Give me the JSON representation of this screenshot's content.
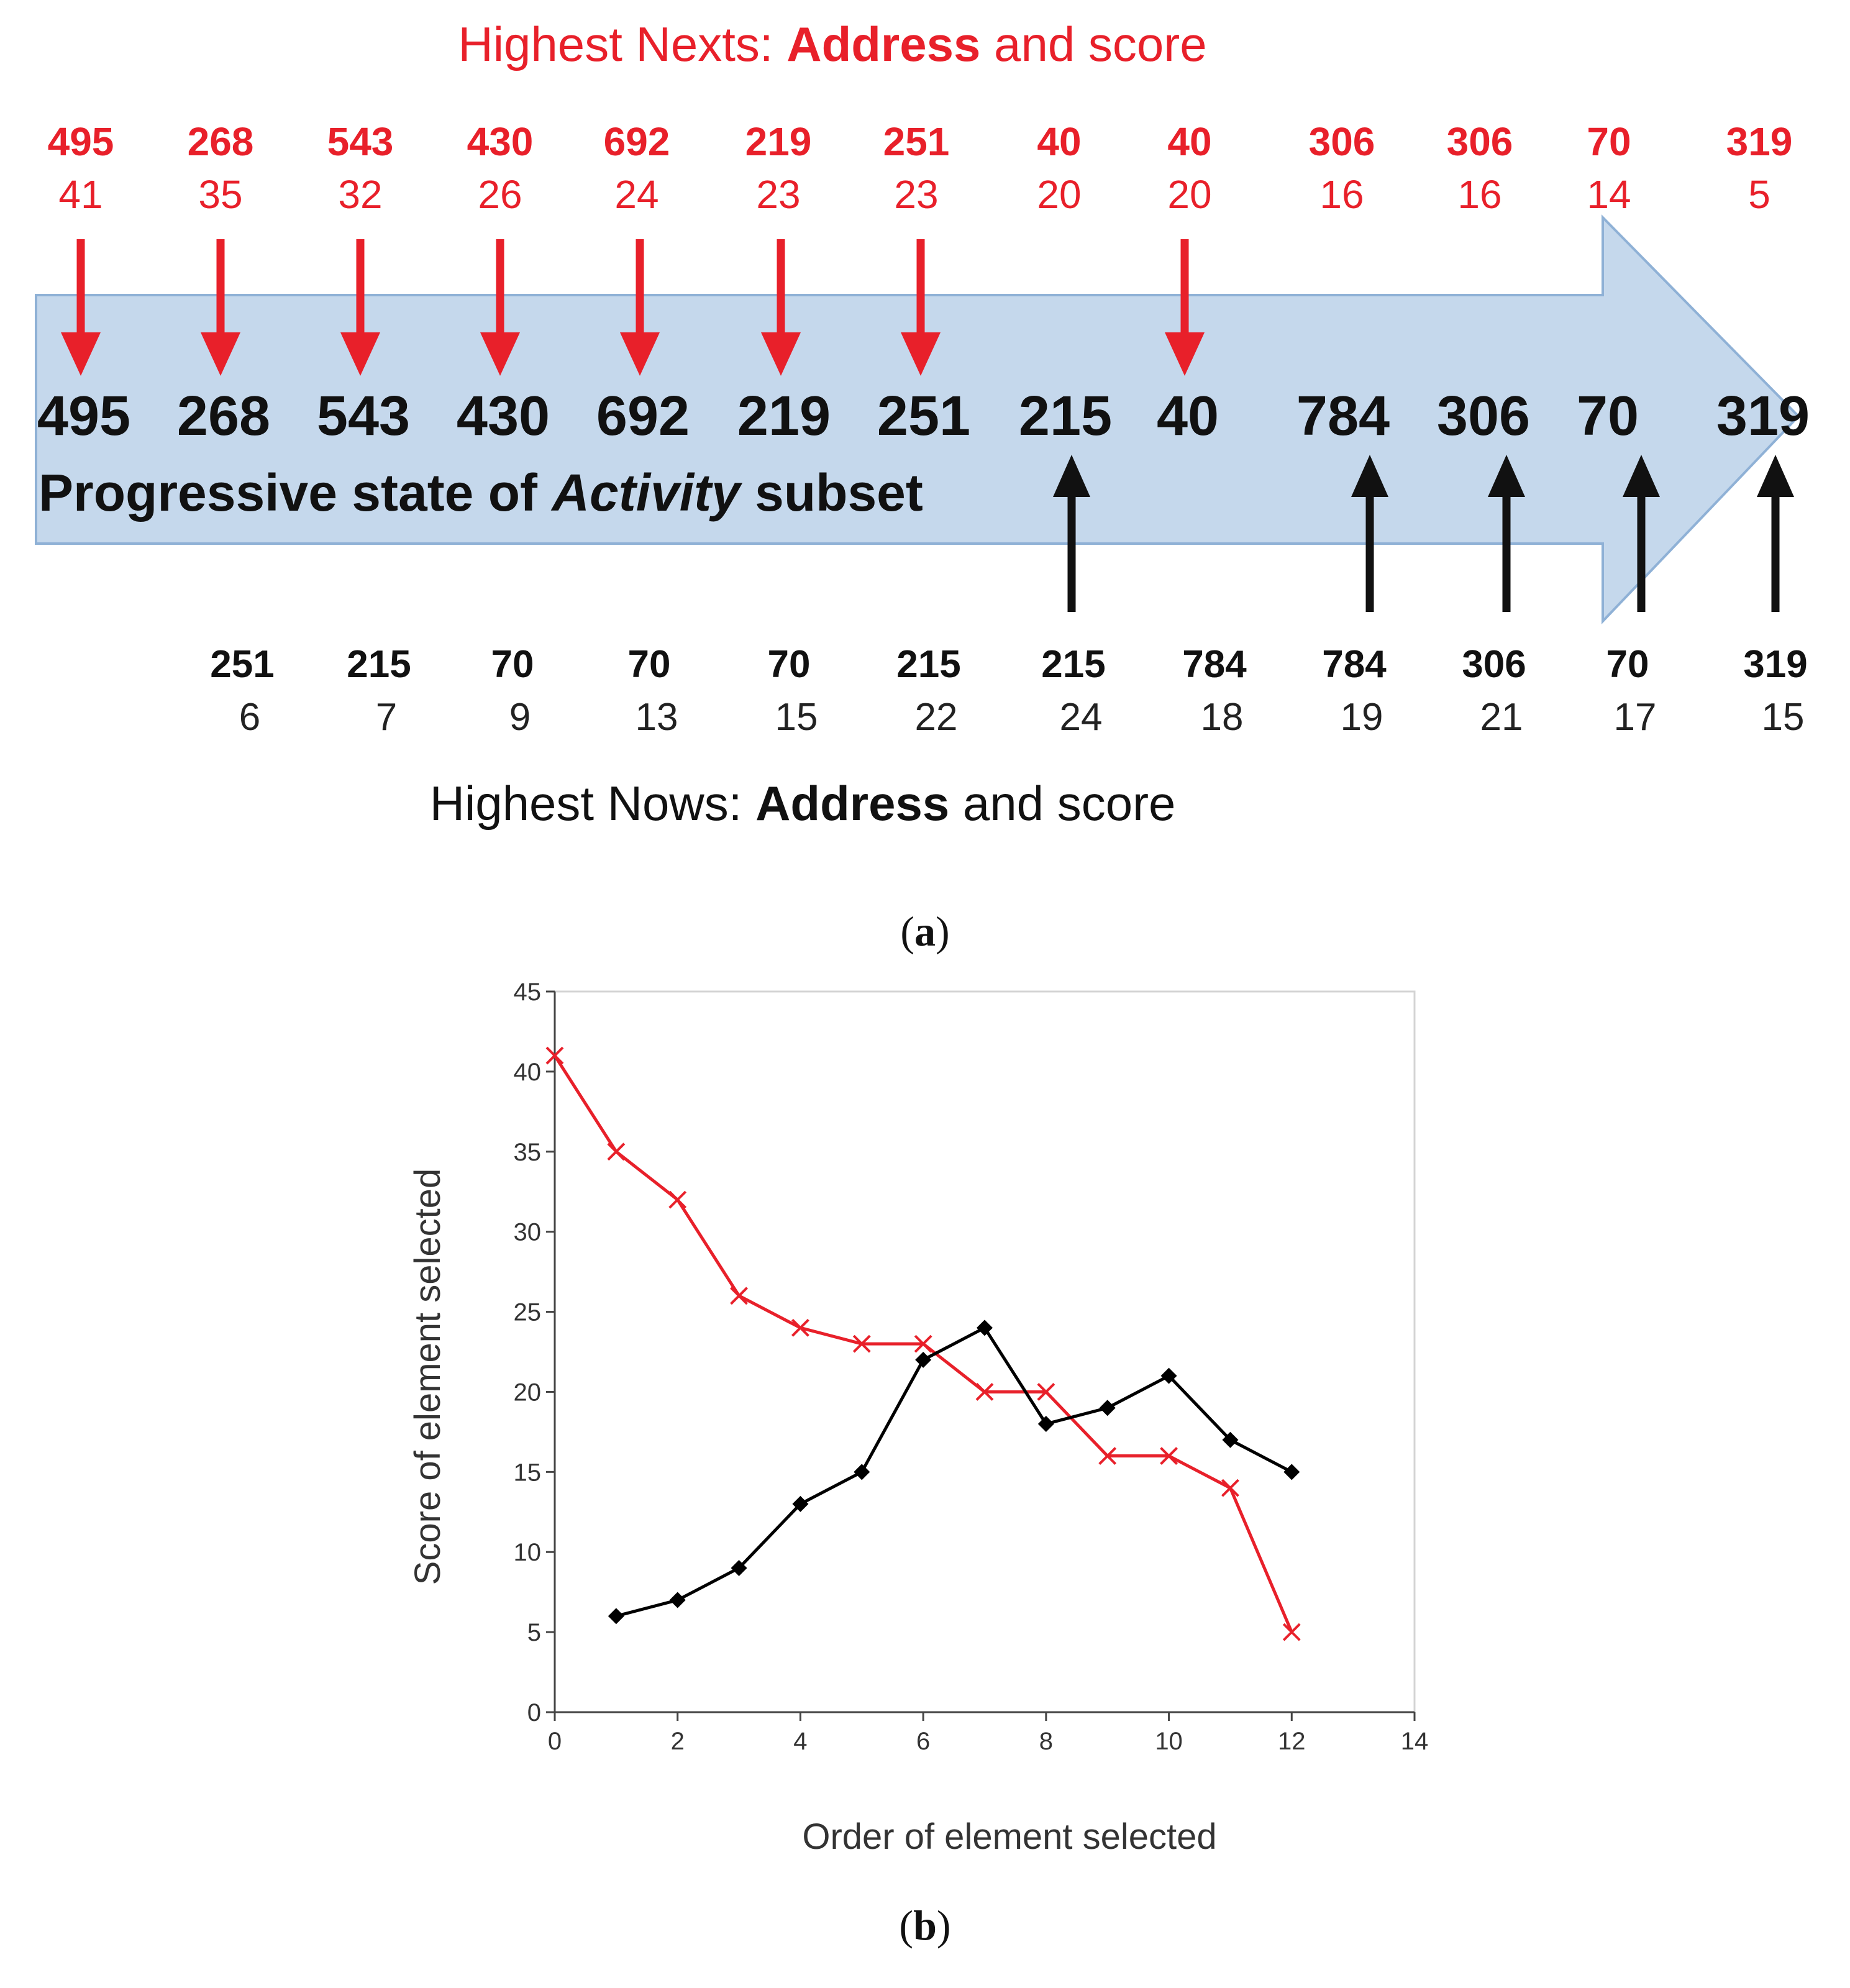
{
  "panel_a": {
    "title_plain": "Highest Nexts: ",
    "title_bold": "Address",
    "title_tail": " and score",
    "bottom_title_plain": "Highest Nows: ",
    "bottom_title_bold": "Address",
    "bottom_title_tail": " and score",
    "arrow_label_prefix": "Progressive state of ",
    "arrow_label_italic": "Activity",
    "arrow_label_suffix": " subset",
    "subset": [
      "495",
      "268",
      "543",
      "430",
      "692",
      "219",
      "251",
      "215",
      "40",
      "784",
      "306",
      "70",
      "319"
    ],
    "nexts": [
      {
        "address": "495",
        "score": "41"
      },
      {
        "address": "268",
        "score": "35"
      },
      {
        "address": "543",
        "score": "32"
      },
      {
        "address": "430",
        "score": "26"
      },
      {
        "address": "692",
        "score": "24"
      },
      {
        "address": "219",
        "score": "23"
      },
      {
        "address": "251",
        "score": "23"
      },
      {
        "address": "40",
        "score": "20"
      },
      {
        "address": "40",
        "score": "20"
      },
      {
        "address": "306",
        "score": "16"
      },
      {
        "address": "306",
        "score": "16"
      },
      {
        "address": "70",
        "score": "14"
      },
      {
        "address": "319",
        "score": "5"
      }
    ],
    "nows": [
      {
        "address": "251",
        "score": "6"
      },
      {
        "address": "215",
        "score": "7"
      },
      {
        "address": "70",
        "score": "9"
      },
      {
        "address": "70",
        "score": "13"
      },
      {
        "address": "70",
        "score": "15"
      },
      {
        "address": "215",
        "score": "22"
      },
      {
        "address": "215",
        "score": "24"
      },
      {
        "address": "784",
        "score": "18"
      },
      {
        "address": "784",
        "score": "19"
      },
      {
        "address": "306",
        "score": "21"
      },
      {
        "address": "70",
        "score": "17"
      },
      {
        "address": "319",
        "score": "15"
      }
    ],
    "colors": {
      "red": "#e8202a",
      "arrow_fill": "#c5d8ec",
      "arrow_stroke": "#8fb1d6",
      "black": "#111111"
    }
  },
  "caption_a": "a",
  "caption_b": "b",
  "chart_data": {
    "type": "line",
    "xlabel": "Order of element selected",
    "ylabel": "Score of element selected",
    "xlim": [
      0,
      14
    ],
    "ylim": [
      0,
      45
    ],
    "xticks": [
      0,
      2,
      4,
      6,
      8,
      10,
      12,
      14
    ],
    "yticks": [
      0,
      5,
      10,
      15,
      20,
      25,
      30,
      35,
      40,
      45
    ],
    "series": [
      {
        "name": "Highest Nexts",
        "color": "#e8202a",
        "marker": "x",
        "x": [
          0,
          1,
          2,
          3,
          4,
          5,
          6,
          7,
          8,
          9,
          10,
          11,
          12
        ],
        "values": [
          41,
          35,
          32,
          26,
          24,
          23,
          23,
          20,
          20,
          16,
          16,
          14,
          5
        ]
      },
      {
        "name": "Highest Nows",
        "color": "#000000",
        "marker": "diamond",
        "x": [
          1,
          2,
          3,
          4,
          5,
          6,
          7,
          8,
          9,
          10,
          11,
          12
        ],
        "values": [
          6,
          7,
          9,
          13,
          15,
          22,
          24,
          18,
          19,
          21,
          17,
          15
        ]
      }
    ]
  }
}
